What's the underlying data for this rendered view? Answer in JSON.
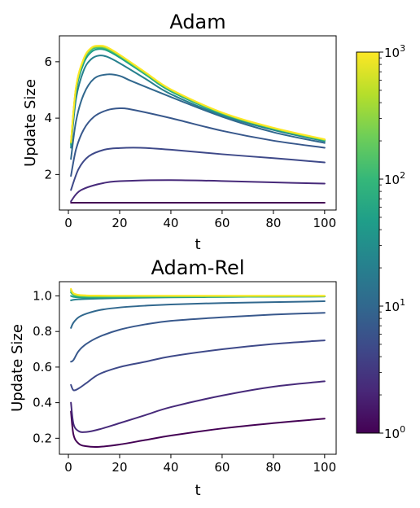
{
  "chart_data": [
    {
      "type": "line",
      "title": "Adam",
      "xlabel": "t",
      "ylabel": "Update Size",
      "xlim": [
        -3.5,
        104.5
      ],
      "ylim": [
        0.74,
        6.92
      ],
      "xticks": [
        0,
        20,
        40,
        60,
        80,
        100
      ],
      "yticks": [
        2,
        4,
        6
      ],
      "xtick_labels": [
        "0",
        "20",
        "40",
        "60",
        "80",
        "100"
      ],
      "ytick_labels": [
        "2",
        "4",
        "6"
      ],
      "series": [
        {
          "color": "#440154",
          "x": [
            1,
            2,
            5,
            10,
            20,
            40,
            60,
            80,
            100
          ],
          "y": [
            1.0,
            1.0,
            1.0,
            1.0,
            1.0,
            1.0,
            1.0,
            1.0,
            1.0
          ]
        },
        {
          "color": "#472a7a",
          "x": [
            1,
            5,
            15,
            25,
            40,
            60,
            80,
            100
          ],
          "y": [
            1.05,
            1.45,
            1.72,
            1.78,
            1.8,
            1.77,
            1.72,
            1.68
          ]
        },
        {
          "color": "#3e4989",
          "x": [
            1,
            4,
            8,
            14,
            20,
            28,
            40,
            60,
            80,
            100
          ],
          "y": [
            1.45,
            2.2,
            2.65,
            2.88,
            2.94,
            2.95,
            2.88,
            2.72,
            2.58,
            2.43
          ]
        },
        {
          "color": "#38588c",
          "x": [
            1,
            3,
            6,
            10,
            15,
            20,
            25,
            40,
            60,
            80,
            100
          ],
          "y": [
            1.95,
            2.9,
            3.6,
            4.05,
            4.28,
            4.35,
            4.3,
            4.0,
            3.55,
            3.2,
            2.95
          ]
        },
        {
          "color": "#31688e",
          "x": [
            1,
            3,
            6,
            10,
            15,
            20,
            25,
            40,
            60,
            80,
            100
          ],
          "y": [
            2.55,
            3.9,
            4.85,
            5.4,
            5.55,
            5.5,
            5.3,
            4.75,
            4.05,
            3.5,
            3.12
          ]
        },
        {
          "color": "#27808e",
          "x": [
            1,
            3,
            6,
            9,
            12,
            15,
            20,
            30,
            40,
            60,
            80,
            100
          ],
          "y": [
            2.95,
            4.7,
            5.7,
            6.1,
            6.22,
            6.18,
            5.95,
            5.4,
            4.85,
            4.1,
            3.58,
            3.18
          ]
        },
        {
          "color": "#1fa088",
          "x": [
            1,
            3,
            6,
            9,
            12,
            15,
            20,
            30,
            40,
            60,
            80,
            100
          ],
          "y": [
            3.05,
            4.95,
            5.95,
            6.35,
            6.45,
            6.4,
            6.15,
            5.55,
            4.95,
            4.15,
            3.62,
            3.2
          ]
        },
        {
          "color": "#35b779",
          "x": [
            1,
            3,
            6,
            9,
            12,
            15,
            20,
            30,
            40,
            60,
            80,
            100
          ],
          "y": [
            3.1,
            5.05,
            6.05,
            6.43,
            6.5,
            6.45,
            6.2,
            5.58,
            4.98,
            4.17,
            3.63,
            3.22
          ]
        },
        {
          "color": "#6ece58",
          "x": [
            1,
            3,
            6,
            9,
            12,
            15,
            20,
            30,
            40,
            60,
            80,
            100
          ],
          "y": [
            3.12,
            5.08,
            6.08,
            6.46,
            6.53,
            6.48,
            6.22,
            5.6,
            5.0,
            4.18,
            3.64,
            3.23
          ]
        },
        {
          "color": "#b5de2b",
          "x": [
            1,
            3,
            6,
            9,
            12,
            15,
            20,
            30,
            40,
            60,
            80,
            100
          ],
          "y": [
            3.14,
            5.1,
            6.1,
            6.48,
            6.55,
            6.5,
            6.24,
            5.62,
            5.01,
            4.19,
            3.65,
            3.24
          ]
        },
        {
          "color": "#fde725",
          "x": [
            1,
            3,
            6,
            9,
            12,
            15,
            20,
            30,
            40,
            60,
            80,
            100
          ],
          "y": [
            3.15,
            5.12,
            6.12,
            6.5,
            6.57,
            6.52,
            6.25,
            5.63,
            5.02,
            4.2,
            3.66,
            3.25
          ]
        }
      ]
    },
    {
      "type": "line",
      "title": "Adam-Rel",
      "xlabel": "t",
      "ylabel": "Update Size",
      "xlim": [
        -3.5,
        104.5
      ],
      "ylim": [
        0.11,
        1.08
      ],
      "xticks": [
        0,
        20,
        40,
        60,
        80,
        100
      ],
      "yticks": [
        0.2,
        0.4,
        0.6,
        0.8,
        1.0
      ],
      "xtick_labels": [
        "0",
        "20",
        "40",
        "60",
        "80",
        "100"
      ],
      "ytick_labels": [
        "0.2",
        "0.4",
        "0.6",
        "0.8",
        "1.0"
      ],
      "series": [
        {
          "color": "#440154",
          "x": [
            1,
            2,
            4,
            7,
            12,
            20,
            30,
            40,
            60,
            80,
            100
          ],
          "y": [
            0.35,
            0.22,
            0.17,
            0.155,
            0.152,
            0.165,
            0.19,
            0.215,
            0.255,
            0.285,
            0.31
          ]
        },
        {
          "color": "#472a7a",
          "x": [
            1,
            2,
            4,
            7,
            12,
            20,
            30,
            40,
            60,
            80,
            100
          ],
          "y": [
            0.4,
            0.28,
            0.24,
            0.235,
            0.25,
            0.285,
            0.33,
            0.375,
            0.44,
            0.49,
            0.52
          ]
        },
        {
          "color": "#3e4989",
          "x": [
            1,
            2,
            4,
            7,
            12,
            20,
            30,
            40,
            60,
            80,
            100
          ],
          "y": [
            0.5,
            0.47,
            0.48,
            0.51,
            0.56,
            0.6,
            0.63,
            0.66,
            0.7,
            0.73,
            0.75
          ]
        },
        {
          "color": "#38588c",
          "x": [
            1,
            2,
            4,
            7,
            12,
            20,
            30,
            40,
            60,
            80,
            100
          ],
          "y": [
            0.63,
            0.64,
            0.69,
            0.73,
            0.77,
            0.81,
            0.84,
            0.86,
            0.88,
            0.895,
            0.905
          ]
        },
        {
          "color": "#31688e",
          "x": [
            1,
            2,
            4,
            7,
            12,
            20,
            30,
            40,
            60,
            80,
            100
          ],
          "y": [
            0.82,
            0.85,
            0.88,
            0.9,
            0.92,
            0.935,
            0.945,
            0.952,
            0.96,
            0.965,
            0.97
          ]
        },
        {
          "color": "#27808e",
          "x": [
            1,
            2,
            4,
            7,
            12,
            20,
            30,
            40,
            60,
            80,
            100
          ],
          "y": [
            0.975,
            0.978,
            0.981,
            0.983,
            0.985,
            0.988,
            0.99,
            0.992,
            0.994,
            0.996,
            0.997
          ]
        },
        {
          "color": "#1fa088",
          "x": [
            1,
            2,
            4,
            7,
            12,
            20,
            40,
            60,
            80,
            100
          ],
          "y": [
            1.0,
            0.995,
            0.992,
            0.991,
            0.991,
            0.992,
            0.994,
            0.995,
            0.996,
            0.997
          ]
        },
        {
          "color": "#35b779",
          "x": [
            1,
            2,
            4,
            7,
            12,
            20,
            40,
            60,
            80,
            100
          ],
          "y": [
            1.02,
            1.005,
            0.998,
            0.996,
            0.995,
            0.995,
            0.996,
            0.996,
            0.997,
            0.998
          ]
        },
        {
          "color": "#6ece58",
          "x": [
            1,
            2,
            4,
            7,
            12,
            20,
            40,
            60,
            80,
            100
          ],
          "y": [
            1.03,
            1.01,
            1.002,
            0.999,
            0.998,
            0.998,
            0.998,
            0.998,
            0.999,
            0.999
          ]
        },
        {
          "color": "#b5de2b",
          "x": [
            1,
            2,
            4,
            7,
            12,
            20,
            40,
            60,
            80,
            100
          ],
          "y": [
            1.035,
            1.012,
            1.004,
            1.001,
            1.0,
            1.0,
            1.0,
            1.0,
            1.0,
            1.0
          ]
        },
        {
          "color": "#fde725",
          "x": [
            1,
            2,
            4,
            7,
            12,
            20,
            40,
            60,
            80,
            100
          ],
          "y": [
            1.04,
            1.015,
            1.006,
            1.003,
            1.002,
            1.001,
            1.001,
            1.001,
            1.001,
            1.001
          ]
        }
      ]
    }
  ],
  "colorbar": {
    "scale": "log",
    "range": [
      1,
      1000
    ],
    "ticks": [
      1,
      10,
      100,
      1000
    ],
    "tick_bases": [
      "10",
      "10",
      "10",
      "10"
    ],
    "tick_exponents": [
      "0",
      "1",
      "2",
      "3"
    ],
    "stops": [
      "#440154",
      "#482878",
      "#3e4989",
      "#31688e",
      "#26828e",
      "#1f9e89",
      "#35b779",
      "#6ece58",
      "#b5de2b",
      "#fde725"
    ]
  }
}
